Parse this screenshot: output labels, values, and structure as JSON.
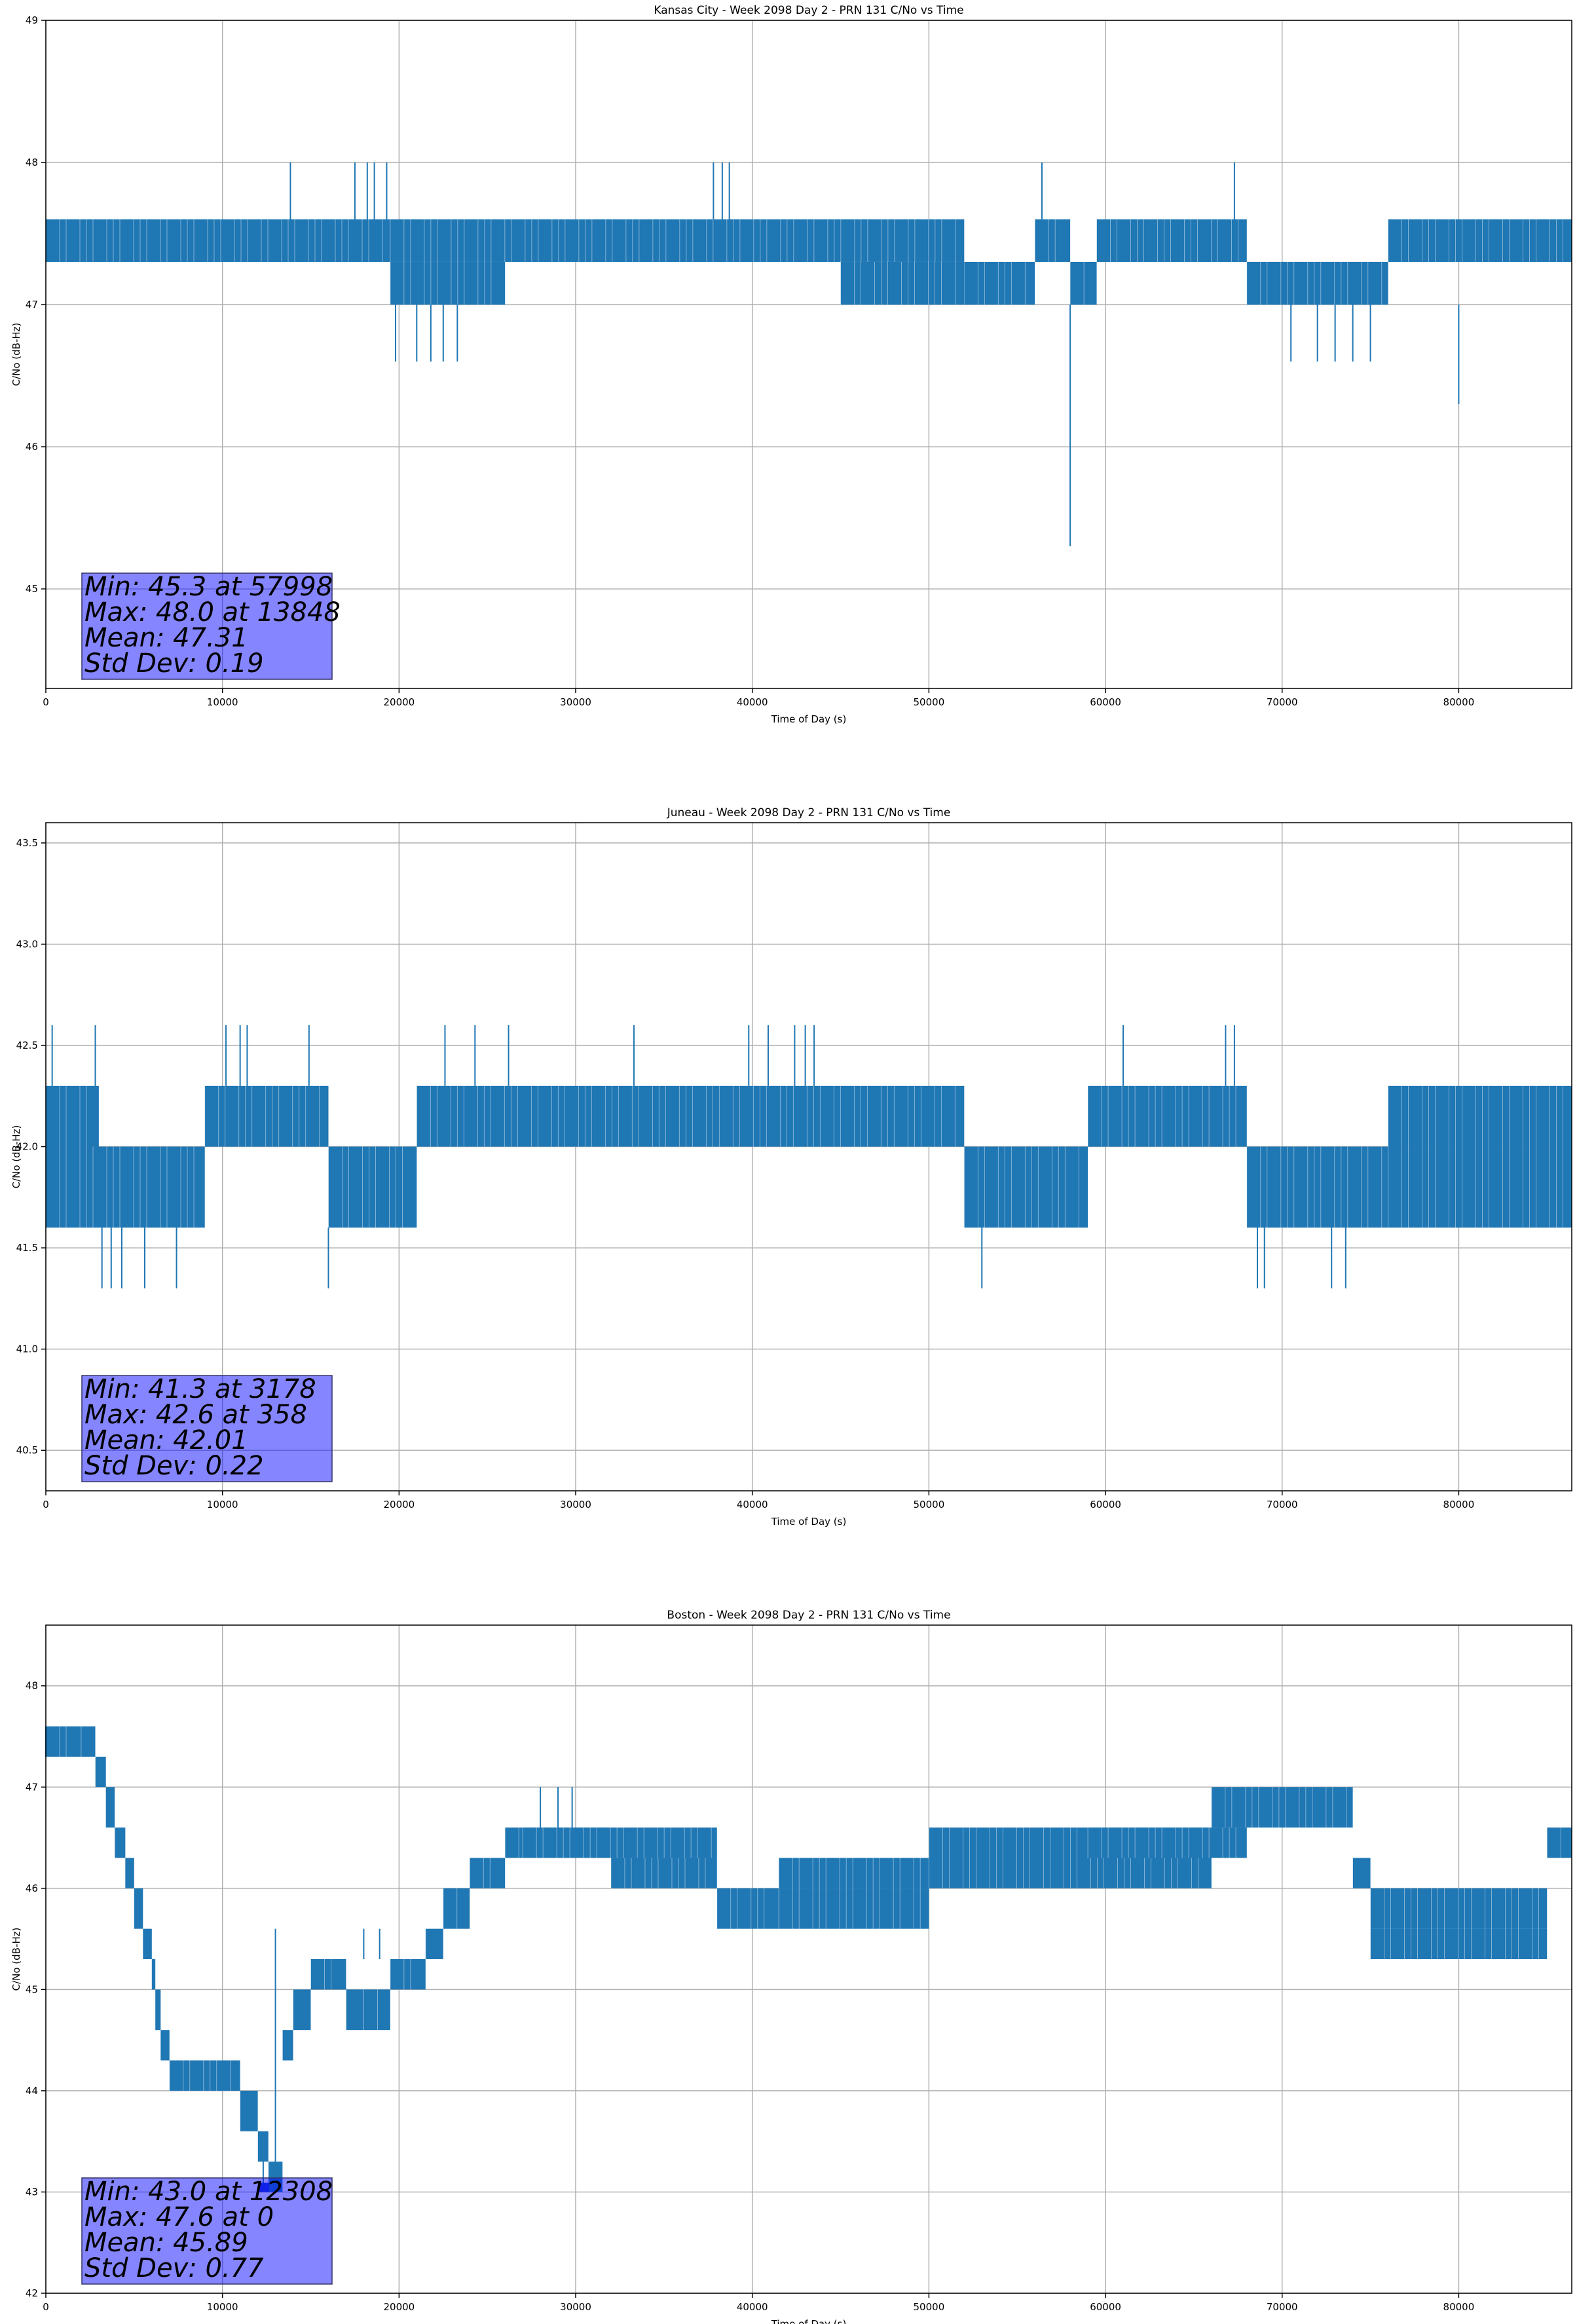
{
  "chart_data": [
    {
      "type": "line",
      "title": "Kansas City - Week 2098 Day 2 - PRN 131 C/No vs Time",
      "xlabel": "Time of Day (s)",
      "ylabel": "C/No (dB-Hz)",
      "xlim": [
        0,
        86400
      ],
      "ylim": [
        44.3,
        49
      ],
      "xticks": [
        0,
        10000,
        20000,
        30000,
        40000,
        50000,
        60000,
        70000,
        80000
      ],
      "yticks": [
        45,
        46,
        47,
        48,
        49
      ],
      "ytick_decimals": 0,
      "grid": true,
      "line_color": "#1f77b4",
      "series": [
        {
          "type": "band",
          "segments": [
            [
              0,
              19500,
              47.3,
              47.6
            ],
            [
              19500,
              52000,
              47.3,
              47.6
            ],
            [
              52000,
              56000,
              47.0,
              47.3
            ],
            [
              56000,
              58000,
              47.3,
              47.6
            ],
            [
              58000,
              59500,
              47.0,
              47.3
            ],
            [
              59500,
              68000,
              47.3,
              47.6
            ],
            [
              68000,
              76000,
              47.0,
              47.3
            ],
            [
              76000,
              86400,
              47.3,
              47.6
            ]
          ]
        },
        {
          "type": "band",
          "segments": [
            [
              19500,
              26000,
              47.0,
              47.3
            ],
            [
              45000,
              52000,
              47.0,
              47.3
            ],
            [
              68000,
              76000,
              47.0,
              47.3
            ]
          ]
        },
        {
          "type": "spikes",
          "values": [
            [
              13848,
              47.6,
              48.0
            ],
            [
              17500,
              47.6,
              48.0
            ],
            [
              18200,
              47.6,
              48.0
            ],
            [
              18600,
              47.6,
              48.0
            ],
            [
              19300,
              47.6,
              48.0
            ],
            [
              37800,
              47.6,
              48.0
            ],
            [
              38300,
              47.6,
              48.0
            ],
            [
              38700,
              47.6,
              48.0
            ],
            [
              56400,
              47.6,
              48.0
            ],
            [
              67300,
              47.6,
              48.0
            ],
            [
              19800,
              47.0,
              46.6
            ],
            [
              21000,
              47.0,
              46.6
            ],
            [
              21800,
              47.0,
              46.6
            ],
            [
              22500,
              47.0,
              46.6
            ],
            [
              23300,
              47.0,
              46.6
            ],
            [
              57998,
              47.0,
              45.3
            ],
            [
              70500,
              47.0,
              46.6
            ],
            [
              72000,
              47.0,
              46.6
            ],
            [
              73000,
              47.0,
              46.6
            ],
            [
              74000,
              47.0,
              46.6
            ],
            [
              75000,
              47.0,
              46.6
            ],
            [
              80000,
              47.0,
              46.3
            ]
          ]
        }
      ],
      "stats": [
        "Min: 45.3 at 57998",
        "Max: 48.0 at 13848",
        "Mean: 47.31",
        "Std Dev: 0.19"
      ]
    },
    {
      "type": "line",
      "title": "Juneau - Week 2098 Day 2 - PRN 131 C/No vs Time",
      "xlabel": "Time of Day (s)",
      "ylabel": "C/No (dB-Hz)",
      "xlim": [
        0,
        86400
      ],
      "ylim": [
        40.3,
        43.6
      ],
      "xticks": [
        0,
        10000,
        20000,
        30000,
        40000,
        50000,
        60000,
        70000,
        80000
      ],
      "yticks": [
        40.5,
        41.0,
        41.5,
        42.0,
        42.5,
        43.0,
        43.5
      ],
      "ytick_decimals": 1,
      "grid": true,
      "line_color": "#1f77b4",
      "series": [
        {
          "type": "band",
          "segments": [
            [
              0,
              9000,
              41.6,
              42.0
            ],
            [
              9000,
              16000,
              42.0,
              42.3
            ],
            [
              16000,
              21000,
              41.6,
              42.0
            ],
            [
              21000,
              52000,
              42.0,
              42.3
            ],
            [
              52000,
              59000,
              41.6,
              42.0
            ],
            [
              59000,
              68000,
              42.0,
              42.3
            ],
            [
              68000,
              76000,
              41.6,
              42.0
            ],
            [
              76000,
              86400,
              42.0,
              42.3
            ]
          ]
        },
        {
          "type": "band",
          "segments": [
            [
              0,
              3000,
              42.0,
              42.3
            ],
            [
              76000,
              86400,
              41.6,
              42.0
            ]
          ]
        },
        {
          "type": "spikes",
          "values": [
            [
              358,
              42.3,
              42.6
            ],
            [
              2800,
              42.3,
              42.6
            ],
            [
              10200,
              42.3,
              42.6
            ],
            [
              11000,
              42.3,
              42.6
            ],
            [
              11400,
              42.3,
              42.6
            ],
            [
              14900,
              42.3,
              42.6
            ],
            [
              22600,
              42.3,
              42.6
            ],
            [
              24300,
              42.3,
              42.6
            ],
            [
              26200,
              42.3,
              42.6
            ],
            [
              33300,
              42.3,
              42.6
            ],
            [
              39800,
              42.3,
              42.6
            ],
            [
              40900,
              42.3,
              42.6
            ],
            [
              42400,
              42.3,
              42.6
            ],
            [
              43000,
              42.3,
              42.6
            ],
            [
              43500,
              42.3,
              42.6
            ],
            [
              61000,
              42.3,
              42.6
            ],
            [
              66800,
              42.3,
              42.6
            ],
            [
              67300,
              42.3,
              42.6
            ],
            [
              3178,
              41.6,
              41.3
            ],
            [
              3700,
              41.6,
              41.3
            ],
            [
              4300,
              41.6,
              41.3
            ],
            [
              5600,
              41.6,
              41.3
            ],
            [
              7400,
              41.6,
              41.3
            ],
            [
              16000,
              41.6,
              41.3
            ],
            [
              53000,
              41.6,
              41.3
            ],
            [
              68600,
              41.6,
              41.3
            ],
            [
              69000,
              41.6,
              41.3
            ],
            [
              72800,
              41.6,
              41.3
            ],
            [
              73600,
              41.6,
              41.3
            ]
          ]
        }
      ],
      "stats": [
        "Min: 41.3 at 3178",
        "Max: 42.6 at 358",
        "Mean: 42.01",
        "Std Dev: 0.22"
      ]
    },
    {
      "type": "line",
      "title": "Boston - Week 2098 Day 2 - PRN 131 C/No vs Time",
      "xlabel": "Time of Day (s)",
      "ylabel": "C/No (dB-Hz)",
      "xlim": [
        0,
        86400
      ],
      "ylim": [
        42,
        48.6
      ],
      "xticks": [
        0,
        10000,
        20000,
        30000,
        40000,
        50000,
        60000,
        70000,
        80000
      ],
      "yticks": [
        42,
        43,
        44,
        45,
        46,
        47,
        48
      ],
      "ytick_decimals": 0,
      "grid": true,
      "line_color": "#1f77b4",
      "series": [
        {
          "type": "band",
          "segments": [
            [
              0,
              2000,
              47.3,
              47.6
            ],
            [
              2000,
              2800,
              47.3,
              47.6
            ],
            [
              2800,
              3400,
              47.0,
              47.3
            ],
            [
              3400,
              3900,
              46.6,
              47.0
            ],
            [
              3900,
              4500,
              46.3,
              46.6
            ],
            [
              4500,
              5000,
              46.0,
              46.3
            ],
            [
              5000,
              5500,
              45.6,
              46.0
            ],
            [
              5500,
              6000,
              45.3,
              45.6
            ],
            [
              6000,
              6200,
              45.0,
              45.3
            ],
            [
              6200,
              6500,
              44.6,
              45.0
            ],
            [
              6500,
              7000,
              44.3,
              44.6
            ],
            [
              7000,
              11000,
              44.0,
              44.3
            ],
            [
              11000,
              12000,
              43.6,
              44.0
            ],
            [
              12000,
              12600,
              43.3,
              43.6
            ],
            [
              12600,
              13400,
              43.0,
              43.3
            ],
            [
              13400,
              14000,
              44.3,
              44.6
            ],
            [
              14000,
              15000,
              44.6,
              45.0
            ],
            [
              15000,
              17000,
              45.0,
              45.3
            ],
            [
              17000,
              18000,
              44.6,
              45.0
            ],
            [
              18000,
              19500,
              44.6,
              45.0
            ],
            [
              19500,
              21500,
              45.0,
              45.3
            ],
            [
              21500,
              22500,
              45.3,
              45.6
            ],
            [
              22500,
              24000,
              45.6,
              46.0
            ],
            [
              24000,
              26000,
              46.0,
              46.3
            ],
            [
              26000,
              32000,
              46.3,
              46.6
            ],
            [
              32000,
              38000,
              46.0,
              46.3
            ],
            [
              38000,
              41500,
              45.6,
              46.0
            ],
            [
              41500,
              50000,
              46.0,
              46.3
            ],
            [
              50000,
              66000,
              46.0,
              46.6
            ],
            [
              66000,
              74000,
              46.6,
              47.0
            ],
            [
              74000,
              75000,
              46.0,
              46.3
            ],
            [
              75000,
              85000,
              45.6,
              46.0
            ],
            [
              85000,
              86400,
              46.3,
              46.6
            ]
          ]
        },
        {
          "type": "band",
          "segments": [
            [
              27000,
              38000,
              46.3,
              46.6
            ],
            [
              41500,
              50000,
              45.6,
              46.0
            ],
            [
              59000,
              68000,
              46.3,
              46.6
            ],
            [
              75000,
              85000,
              45.3,
              45.6
            ]
          ]
        },
        {
          "type": "spikes",
          "values": [
            [
              0,
              47.3,
              47.6
            ],
            [
              12308,
              43.3,
              43.0
            ],
            [
              13000,
              43.3,
              45.6
            ],
            [
              18000,
              45.3,
              45.6
            ],
            [
              18900,
              45.3,
              45.6
            ],
            [
              28000,
              46.6,
              47.0
            ],
            [
              29000,
              46.6,
              47.0
            ],
            [
              29800,
              46.6,
              47.0
            ],
            [
              66500,
              46.6,
              47.0
            ]
          ]
        },
        {
          "type": "marker",
          "values": [
            [
              12308,
              43.0
            ]
          ]
        }
      ],
      "stats": [
        "Min: 43.0 at 12308",
        "Max: 47.6 at 0",
        "Mean: 45.89",
        "Std Dev: 0.77"
      ]
    }
  ]
}
